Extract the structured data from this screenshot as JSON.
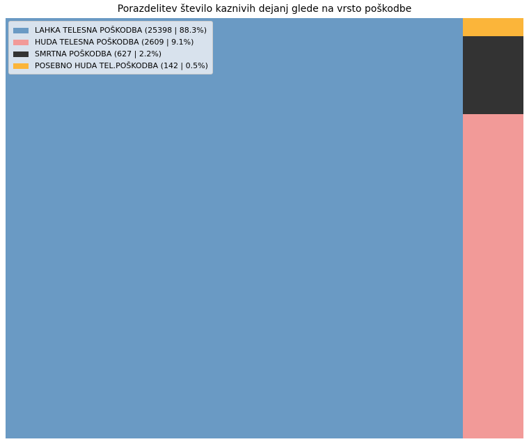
{
  "chart_data": {
    "type": "treemap",
    "title": "Porazdelitev število kaznivih dejanj glede na vrsto poškodbe",
    "legend_position": "top-left",
    "series": [
      {
        "name": "LAHKA TELESNA POŠKODBA",
        "value": 25398,
        "share_percent": 88.3,
        "legend_label": "LAHKA TELESNA POŠKODBA (25398 | 88.3%)",
        "color": "#6a9ac4"
      },
      {
        "name": "HUDA TELESNA POŠKODBA",
        "value": 2609,
        "share_percent": 9.1,
        "legend_label": "HUDA TELESNA POŠKODBA (2609 | 9.1%)",
        "color": "#f29a98"
      },
      {
        "name": "SMRTNA POŠKODBA",
        "value": 627,
        "share_percent": 2.2,
        "legend_label": "SMRTNA POŠKODBA (627 | 2.2%)",
        "color": "#333333"
      },
      {
        "name": "POSEBNO HUDA TEL.POŠKODBA",
        "value": 142,
        "share_percent": 0.5,
        "legend_label": "POSEBNO HUDA TEL.POŠKODBA (142 | 0.5%)",
        "color": "#fbb53a"
      }
    ]
  }
}
